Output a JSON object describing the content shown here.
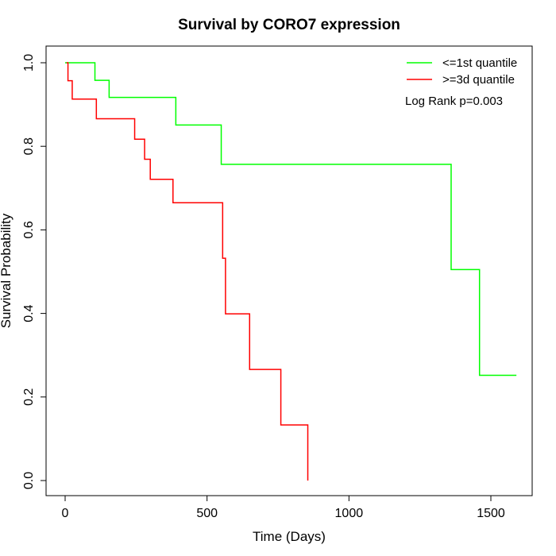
{
  "chart_data": {
    "type": "line",
    "subtype": "kaplan-meier-step",
    "title": "Survival by CORO7 expression",
    "xlabel": "Time (Days)",
    "ylabel": "Survival Probability",
    "xlim": [
      0,
      1600
    ],
    "ylim": [
      0,
      1
    ],
    "x_ticks": [
      0,
      500,
      1000,
      1500
    ],
    "x_tick_labels": [
      "0",
      "500",
      "1000",
      "1500"
    ],
    "y_ticks": [
      0.0,
      0.2,
      0.4,
      0.6,
      0.8,
      1.0
    ],
    "y_tick_labels": [
      "0.0",
      "0.2",
      "0.4",
      "0.6",
      "0.8",
      "1.0"
    ],
    "grid": false,
    "legend_position": "top-right",
    "annotation": "Log Rank p=0.003",
    "series": [
      {
        "name": "<=1st quantile",
        "color": "#00ff00",
        "x": [
          0,
          105,
          155,
          390,
          550,
          1360,
          1460,
          1590
        ],
        "y": [
          1.0,
          0.958,
          0.917,
          0.851,
          0.757,
          0.505,
          0.252,
          0.252
        ]
      },
      {
        "name": ">=3d quantile",
        "color": "#ff0000",
        "x": [
          5,
          10,
          25,
          110,
          245,
          280,
          300,
          380,
          555,
          565,
          650,
          760,
          855
        ],
        "y": [
          1.0,
          0.957,
          0.913,
          0.866,
          0.817,
          0.769,
          0.721,
          0.665,
          0.532,
          0.399,
          0.266,
          0.133,
          0.0
        ]
      }
    ]
  }
}
